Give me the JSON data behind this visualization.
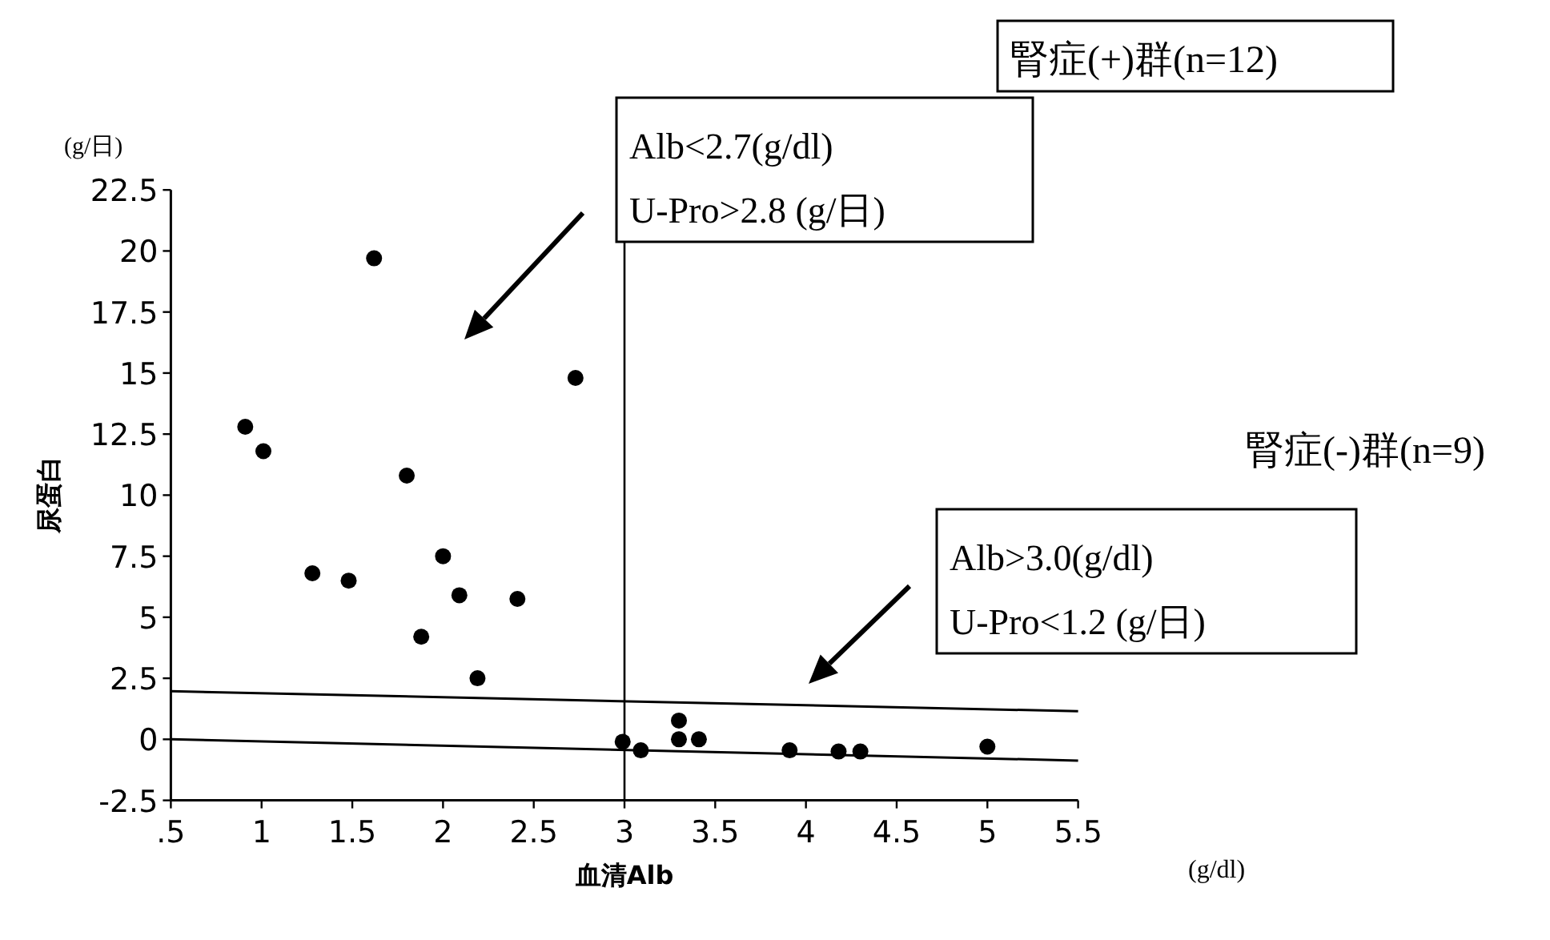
{
  "chart_data": {
    "type": "scatter",
    "xlabel": "血清Alb",
    "ylabel": "尿蛋白",
    "xlim": [
      0.5,
      5.5
    ],
    "xticks": [
      {
        "value": 0.5,
        "label": ".5"
      },
      1,
      1.5,
      2,
      2.5,
      3,
      3.5,
      4,
      4.5,
      5,
      5.5
    ],
    "ylim": [
      -2.5,
      22.5
    ],
    "yticks": [
      -2.5,
      0,
      2.5,
      5,
      7.5,
      10,
      12.5,
      15,
      17.5,
      20,
      22.5
    ],
    "marker": "circle",
    "grid": false,
    "series": [
      {
        "color": "#000000",
        "x": [
          0.91,
          1.01,
          1.62,
          1.28,
          1.48,
          1.8,
          2.0,
          2.09,
          1.88,
          2.41,
          2.19,
          2.73
        ],
        "values": [
          12.8,
          11.8,
          19.7,
          6.8,
          6.5,
          10.8,
          7.5,
          5.9,
          4.2,
          5.75,
          2.5,
          14.8
        ]
      },
      {
        "color": "#000000",
        "x": [
          2.99,
          3.09,
          3.3,
          3.3,
          3.41,
          3.91,
          4.18,
          4.3,
          5.0
        ],
        "values": [
          -0.1,
          -0.45,
          0.77,
          0,
          0,
          -0.45,
          -0.5,
          -0.5,
          -0.3
        ]
      },
      {
        "type": "line",
        "color": "#000000",
        "marker": "none",
        "x": [
          0.5,
          5.5
        ],
        "values": [
          1.97,
          1.15
        ]
      },
      {
        "type": "line",
        "color": "#000000",
        "marker": "none",
        "x": [
          0.5,
          5.5
        ],
        "values": [
          0,
          -0.87
        ]
      }
    ],
    "ref_lines": [
      {
        "axis": "x",
        "value": 3
      }
    ],
    "annotations": [
      "(g/日)",
      "(g/dl)",
      "腎症(+)群(n=12)",
      "Alb<2.7(g/dl)",
      "U-Pro>2.8 (g/日)",
      "腎症(-)群(n=9)",
      "Alb>3.0(g/dl)",
      "U-Pro<1.2 (g/日)"
    ]
  }
}
